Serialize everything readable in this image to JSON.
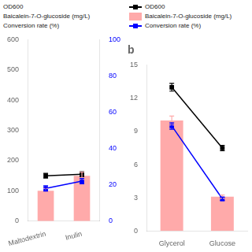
{
  "chart_data": [
    {
      "type": "bar",
      "categories": [
        "Maltodextrin",
        "Inulin"
      ],
      "series": [
        {
          "name": "OD600",
          "type": "line",
          "color": "black",
          "marker": "square",
          "values": [
            150,
            155
          ],
          "errors": [
            8,
            8
          ]
        },
        {
          "name": "Baicalein-7-O-glucoside (mg/L)",
          "type": "bar",
          "color": "#ffaaaa",
          "values": [
            100,
            150
          ],
          "errors": [
            8,
            12
          ]
        },
        {
          "name": "Conversion rate (%)",
          "type": "line",
          "color": "blue",
          "marker": "square",
          "axis": "y2",
          "values": [
            18,
            22
          ],
          "errors": [
            1.5,
            1.5
          ]
        }
      ],
      "ylim": [
        0,
        600
      ],
      "yticks": [
        0,
        100,
        200,
        300,
        400,
        500,
        600
      ],
      "y2lim": [
        0,
        100
      ],
      "y2ticks": [
        0,
        20,
        40,
        60,
        80,
        100
      ],
      "grid": false,
      "annotations": [
        "OD600",
        "Baicalein-7-O-glucoside (mg/L)",
        "Conversion rate (%)"
      ]
    },
    {
      "type": "bar",
      "title": "b",
      "categories": [
        "Glycerol",
        "Glucose"
      ],
      "series": [
        {
          "name": "OD600",
          "type": "line",
          "color": "black",
          "marker": "square",
          "values": [
            13.0,
            7.5
          ],
          "errors": [
            0.35,
            0.25
          ]
        },
        {
          "name": "Baicalein-7-O-glucoside (mg/L)",
          "type": "bar",
          "color": "#ffaaaa",
          "values": [
            10.0,
            3.1
          ],
          "errors": [
            0.4,
            0.15
          ]
        },
        {
          "name": "Conversion rate (%)",
          "type": "line",
          "color": "blue",
          "marker": "square",
          "values": [
            9.5,
            2.9
          ],
          "errors": [
            0.3,
            0.15
          ]
        }
      ],
      "ylim": [
        0,
        15
      ],
      "yticks": [
        0,
        3,
        6,
        9,
        12,
        15
      ],
      "grid": false,
      "legend": "upper right"
    }
  ]
}
